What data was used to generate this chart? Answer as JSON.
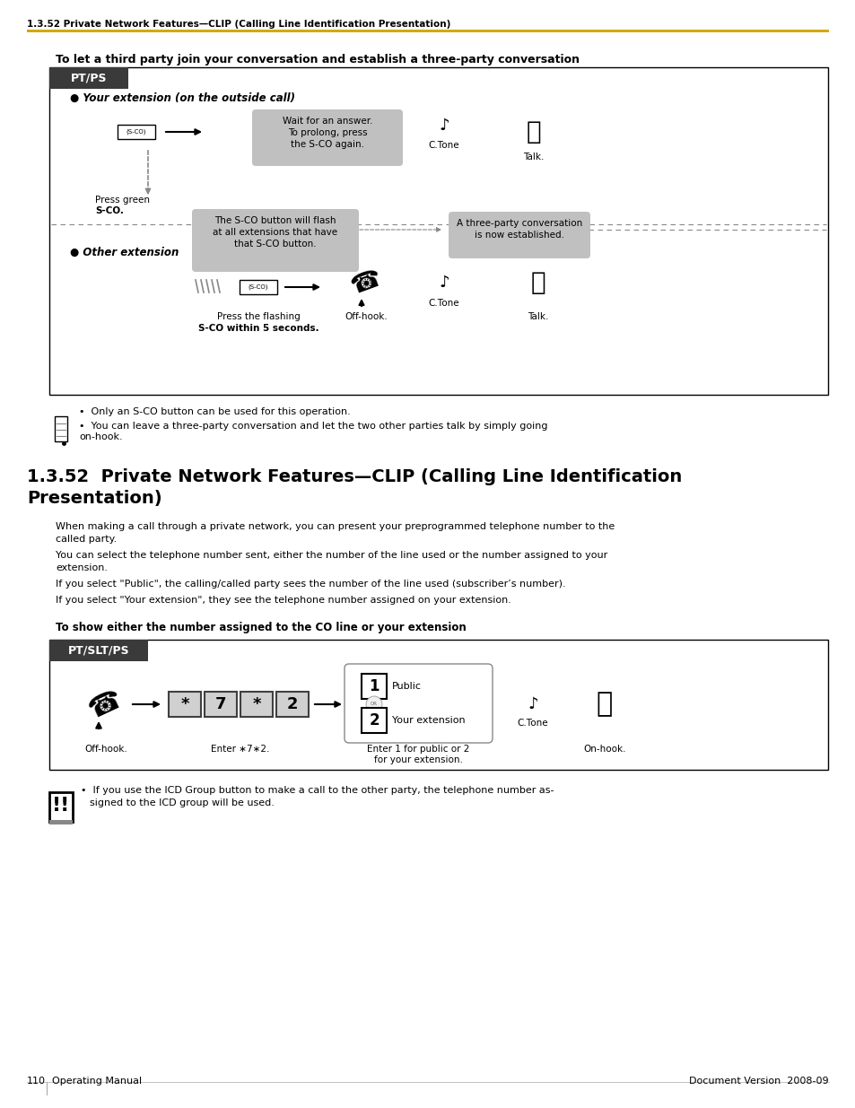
{
  "page_num": "110",
  "doc_version": "Document Version  2008-09",
  "manual_type": "Operating Manual",
  "header_text": "1.3.52 Private Network Features—CLIP (Calling Line Identification Presentation)",
  "header_line_color": "#D4A800",
  "bg_color": "#FFFFFF",
  "section1_title": "To let a third party join your conversation and establish a three-party conversation",
  "box1_label": "PT/PS",
  "your_ext_label": "● Your extension (on the outside call)",
  "other_ext_label": "● Other extension",
  "wait_bubble": "Wait for an answer.\nTo prolong, press\nthe S-CO again.",
  "sco_flash_bubble": "The S-CO button will flash\nat all extensions that have\nthat S-CO button.",
  "three_party_bubble": "A three-party conversation\nis now established.",
  "press_green_1": "Press green",
  "press_green_2": "S-CO.",
  "ctone1": "C.Tone",
  "talk1": "Talk.",
  "press_flashing_1": "Press the flashing",
  "press_flashing_2": "S-CO within 5 seconds.",
  "offhook1": "Off-hook.",
  "ctone2": "C.Tone",
  "talk2": "Talk.",
  "bubble_gray": "#C0C0C0",
  "tab_dark": "#3A3A3A",
  "note1": "Only an S-CO button can be used for this operation.",
  "note2": "You can leave a three-party conversation and let the two other parties talk by simply going\non-hook.",
  "section2_title_line1": "1.3.52  Private Network Features—CLIP (Calling Line Identification",
  "section2_title_line2": "Presentation)",
  "section2_para1": "When making a call through a private network, you can present your preprogrammed telephone number to the\ncalled party.",
  "section2_para2": "You can select the telephone number sent, either the number of the line used or the number assigned to your\nextension.",
  "section2_para3": "If you select \"Public\", the calling/called party sees the number of the line used (subscriber’s number).",
  "section2_para4": "If you select \"Your extension\", they see the telephone number assigned on your extension.",
  "section3_title": "To show either the number assigned to the CO line or your extension",
  "box2_label": "PT/SLT/PS",
  "offhook2": "Off-hook.",
  "enter_label": "Enter ∗7∗2.",
  "enter_12": "Enter 1 for public or 2\nfor your extension.",
  "public_label": "Public",
  "your_ext_label2": "Your extension",
  "ctone3": "C.Tone",
  "onhook": "On-hook.",
  "warning_note_1": "If you use the ICD Group button to make a call to the other party, the telephone number as-",
  "warning_note_2": "signed to the ICD group will be used."
}
